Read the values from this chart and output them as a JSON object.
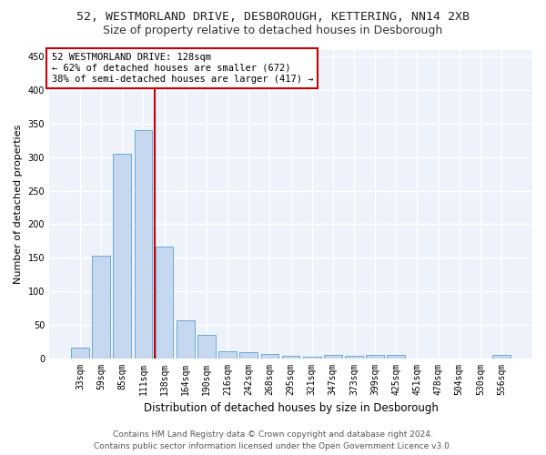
{
  "title_line1": "52, WESTMORLAND DRIVE, DESBOROUGH, KETTERING, NN14 2XB",
  "title_line2": "Size of property relative to detached houses in Desborough",
  "xlabel": "Distribution of detached houses by size in Desborough",
  "ylabel": "Number of detached properties",
  "bar_color": "#c5d8f0",
  "bar_edge_color": "#6aaad4",
  "categories": [
    "33sqm",
    "59sqm",
    "85sqm",
    "111sqm",
    "138sqm",
    "164sqm",
    "190sqm",
    "216sqm",
    "242sqm",
    "268sqm",
    "295sqm",
    "321sqm",
    "347sqm",
    "373sqm",
    "399sqm",
    "425sqm",
    "451sqm",
    "478sqm",
    "504sqm",
    "530sqm",
    "556sqm"
  ],
  "values": [
    16,
    153,
    305,
    340,
    167,
    57,
    35,
    10,
    9,
    6,
    3,
    2,
    5,
    4,
    5,
    5,
    0,
    0,
    0,
    0,
    5
  ],
  "ylim": [
    0,
    460
  ],
  "yticks": [
    0,
    50,
    100,
    150,
    200,
    250,
    300,
    350,
    400,
    450
  ],
  "vline_x": 3.55,
  "vline_color": "#cc0000",
  "annotation_text": "52 WESTMORLAND DRIVE: 128sqm\n← 62% of detached houses are smaller (672)\n38% of semi-detached houses are larger (417) →",
  "annotation_box_color": "#ffffff",
  "annotation_box_edgecolor": "#cc0000",
  "footer_line1": "Contains HM Land Registry data © Crown copyright and database right 2024.",
  "footer_line2": "Contains public sector information licensed under the Open Government Licence v3.0.",
  "bg_color": "#eef2fb",
  "grid_color": "#ffffff",
  "title1_fontsize": 9.5,
  "title2_fontsize": 9,
  "xlabel_fontsize": 8.5,
  "ylabel_fontsize": 8,
  "tick_fontsize": 7,
  "footer_fontsize": 6.5,
  "annotation_fontsize": 7.5
}
